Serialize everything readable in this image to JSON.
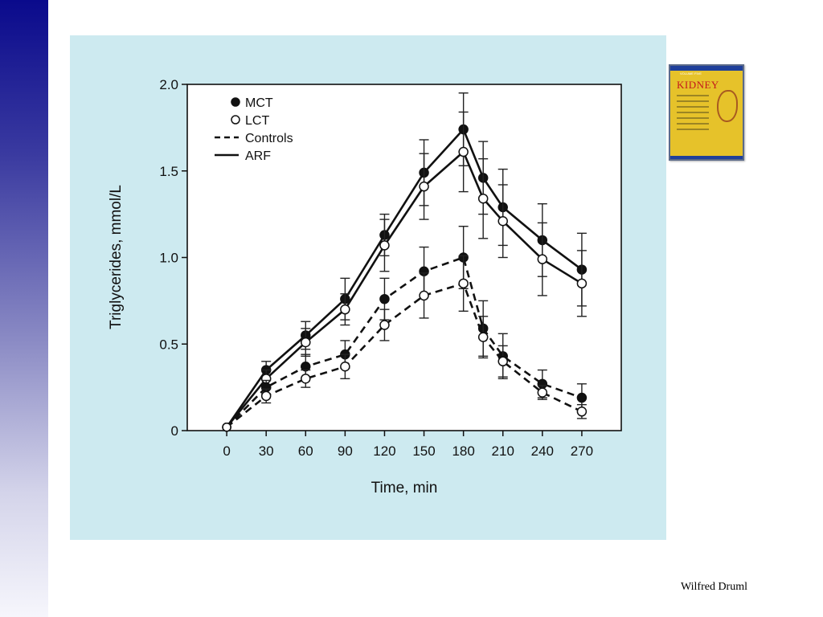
{
  "slide": {
    "credit": "Wilfred Druml",
    "book_title": "KIDNEY",
    "book_volume": "VOLUME FIVE"
  },
  "colors": {
    "sidebar_top": "#0a0a8c",
    "panel_background": "#cdeaf0",
    "plot_background": "#ffffff",
    "book_cover": "#e6c22a"
  },
  "chart_data": {
    "type": "line",
    "title": "",
    "xlabel": "Time, min",
    "ylabel": "Triglycerides, mmol/L",
    "xlim": [
      -30,
      300
    ],
    "ylim": [
      0,
      2.0
    ],
    "x_ticks": [
      "0",
      "30",
      "60",
      "90",
      "120",
      "150",
      "180",
      "210",
      "240",
      "270"
    ],
    "y_ticks": [
      "0",
      "0.5",
      "1.0",
      "1.5",
      "2.0"
    ],
    "grid": false,
    "legend_position": "top-left",
    "legend": [
      {
        "label": "MCT",
        "marker": "filled-circle"
      },
      {
        "label": "LCT",
        "marker": "open-circle"
      },
      {
        "label": "Controls",
        "line": "dashed"
      },
      {
        "label": "ARF",
        "line": "solid"
      }
    ],
    "series": [
      {
        "name": "MCT ARF",
        "substrate": "MCT",
        "group": "ARF",
        "marker": "filled",
        "line": "solid",
        "x": [
          0,
          30,
          60,
          90,
          120,
          150,
          180,
          195,
          210,
          240,
          270
        ],
        "y": [
          0.02,
          0.35,
          0.55,
          0.76,
          1.13,
          1.49,
          1.74,
          1.46,
          1.29,
          1.1,
          0.93
        ],
        "err": [
          0,
          0.05,
          0.08,
          0.12,
          0.12,
          0.19,
          0.21,
          0.21,
          0.22,
          0.21,
          0.21
        ]
      },
      {
        "name": "LCT ARF",
        "substrate": "LCT",
        "group": "ARF",
        "marker": "open",
        "line": "solid",
        "x": [
          0,
          30,
          60,
          90,
          120,
          150,
          180,
          195,
          210,
          240,
          270
        ],
        "y": [
          0.02,
          0.3,
          0.51,
          0.7,
          1.07,
          1.41,
          1.61,
          1.34,
          1.21,
          0.99,
          0.85
        ],
        "err": [
          0,
          0.05,
          0.08,
          0.09,
          0.15,
          0.19,
          0.23,
          0.23,
          0.21,
          0.21,
          0.19
        ]
      },
      {
        "name": "MCT Controls",
        "substrate": "MCT",
        "group": "Controls",
        "marker": "filled",
        "line": "dashed",
        "x": [
          0,
          30,
          60,
          90,
          120,
          150,
          180,
          195,
          210,
          240,
          270
        ],
        "y": [
          0.02,
          0.25,
          0.37,
          0.44,
          0.76,
          0.92,
          1.0,
          0.59,
          0.43,
          0.27,
          0.19
        ],
        "err": [
          0,
          0.04,
          0.07,
          0.08,
          0.12,
          0.14,
          0.18,
          0.16,
          0.13,
          0.08,
          0.08
        ]
      },
      {
        "name": "LCT Controls",
        "substrate": "LCT",
        "group": "Controls",
        "marker": "open",
        "line": "dashed",
        "x": [
          0,
          30,
          60,
          90,
          120,
          150,
          180,
          195,
          210,
          240,
          270
        ],
        "y": [
          0.02,
          0.2,
          0.3,
          0.37,
          0.61,
          0.78,
          0.85,
          0.54,
          0.4,
          0.22,
          0.11
        ],
        "err": [
          0,
          0.04,
          0.05,
          0.07,
          0.09,
          0.13,
          0.16,
          0.12,
          0.09,
          0.04,
          0.04
        ]
      }
    ]
  }
}
